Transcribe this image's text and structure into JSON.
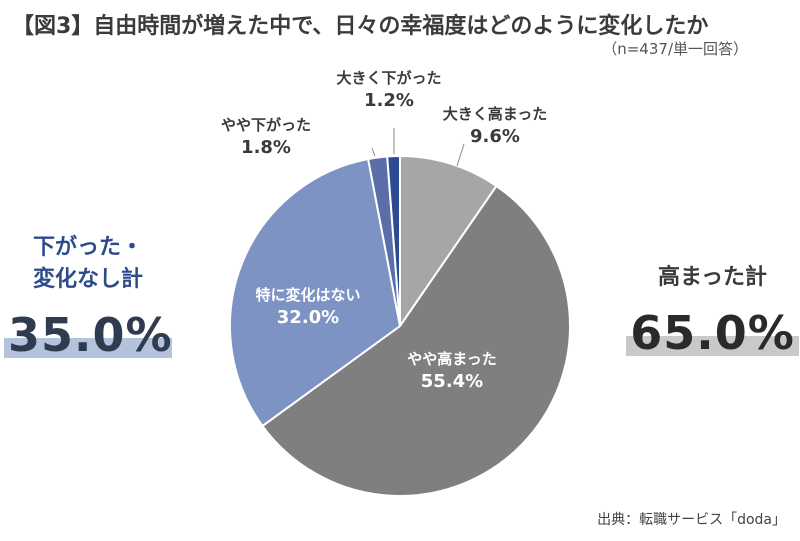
{
  "title": "【図3】自由時間が増えた中で、日々の幸福度はどのように変化したか",
  "sample_note": "（n=437/単一回答）",
  "colors": {
    "grey_light": "#a6a6a6",
    "grey_dark": "#7f7f7f",
    "blue_mid": "#7d93c4",
    "blue_deep": "#5b6ea8",
    "blue_strong": "#2c4b92",
    "accent_blue": "#2f4a8c",
    "bar_blue": "#b4c2de",
    "bar_grey": "#c9c9c9"
  },
  "chart_data": {
    "type": "pie",
    "title": "【図3】自由時間が増えた中で、日々の幸福度はどのように変化したか",
    "slices": [
      {
        "label": "大きく高まった",
        "value": 9.6,
        "display": "9.6%",
        "color": "#a6a6a6"
      },
      {
        "label": "やや高まった",
        "value": 55.4,
        "display": "55.4%",
        "color": "#7f7f7f"
      },
      {
        "label": "特に変化はない",
        "value": 32.0,
        "display": "32.0%",
        "color": "#7d93c4"
      },
      {
        "label": "やや下がった",
        "value": 1.8,
        "display": "1.8%",
        "color": "#5b6ea8"
      },
      {
        "label": "大きく下がった",
        "value": 1.2,
        "display": "1.2%",
        "color": "#2c4b92"
      }
    ],
    "start": "12 o'clock",
    "direction": "clockwise"
  },
  "summary_left": {
    "label_line1": "下がった・",
    "label_line2": "変化なし計",
    "value": "35.0%"
  },
  "summary_right": {
    "label": "高まった計",
    "value": "65.0%"
  },
  "source": "出典：転職サービス「doda」"
}
